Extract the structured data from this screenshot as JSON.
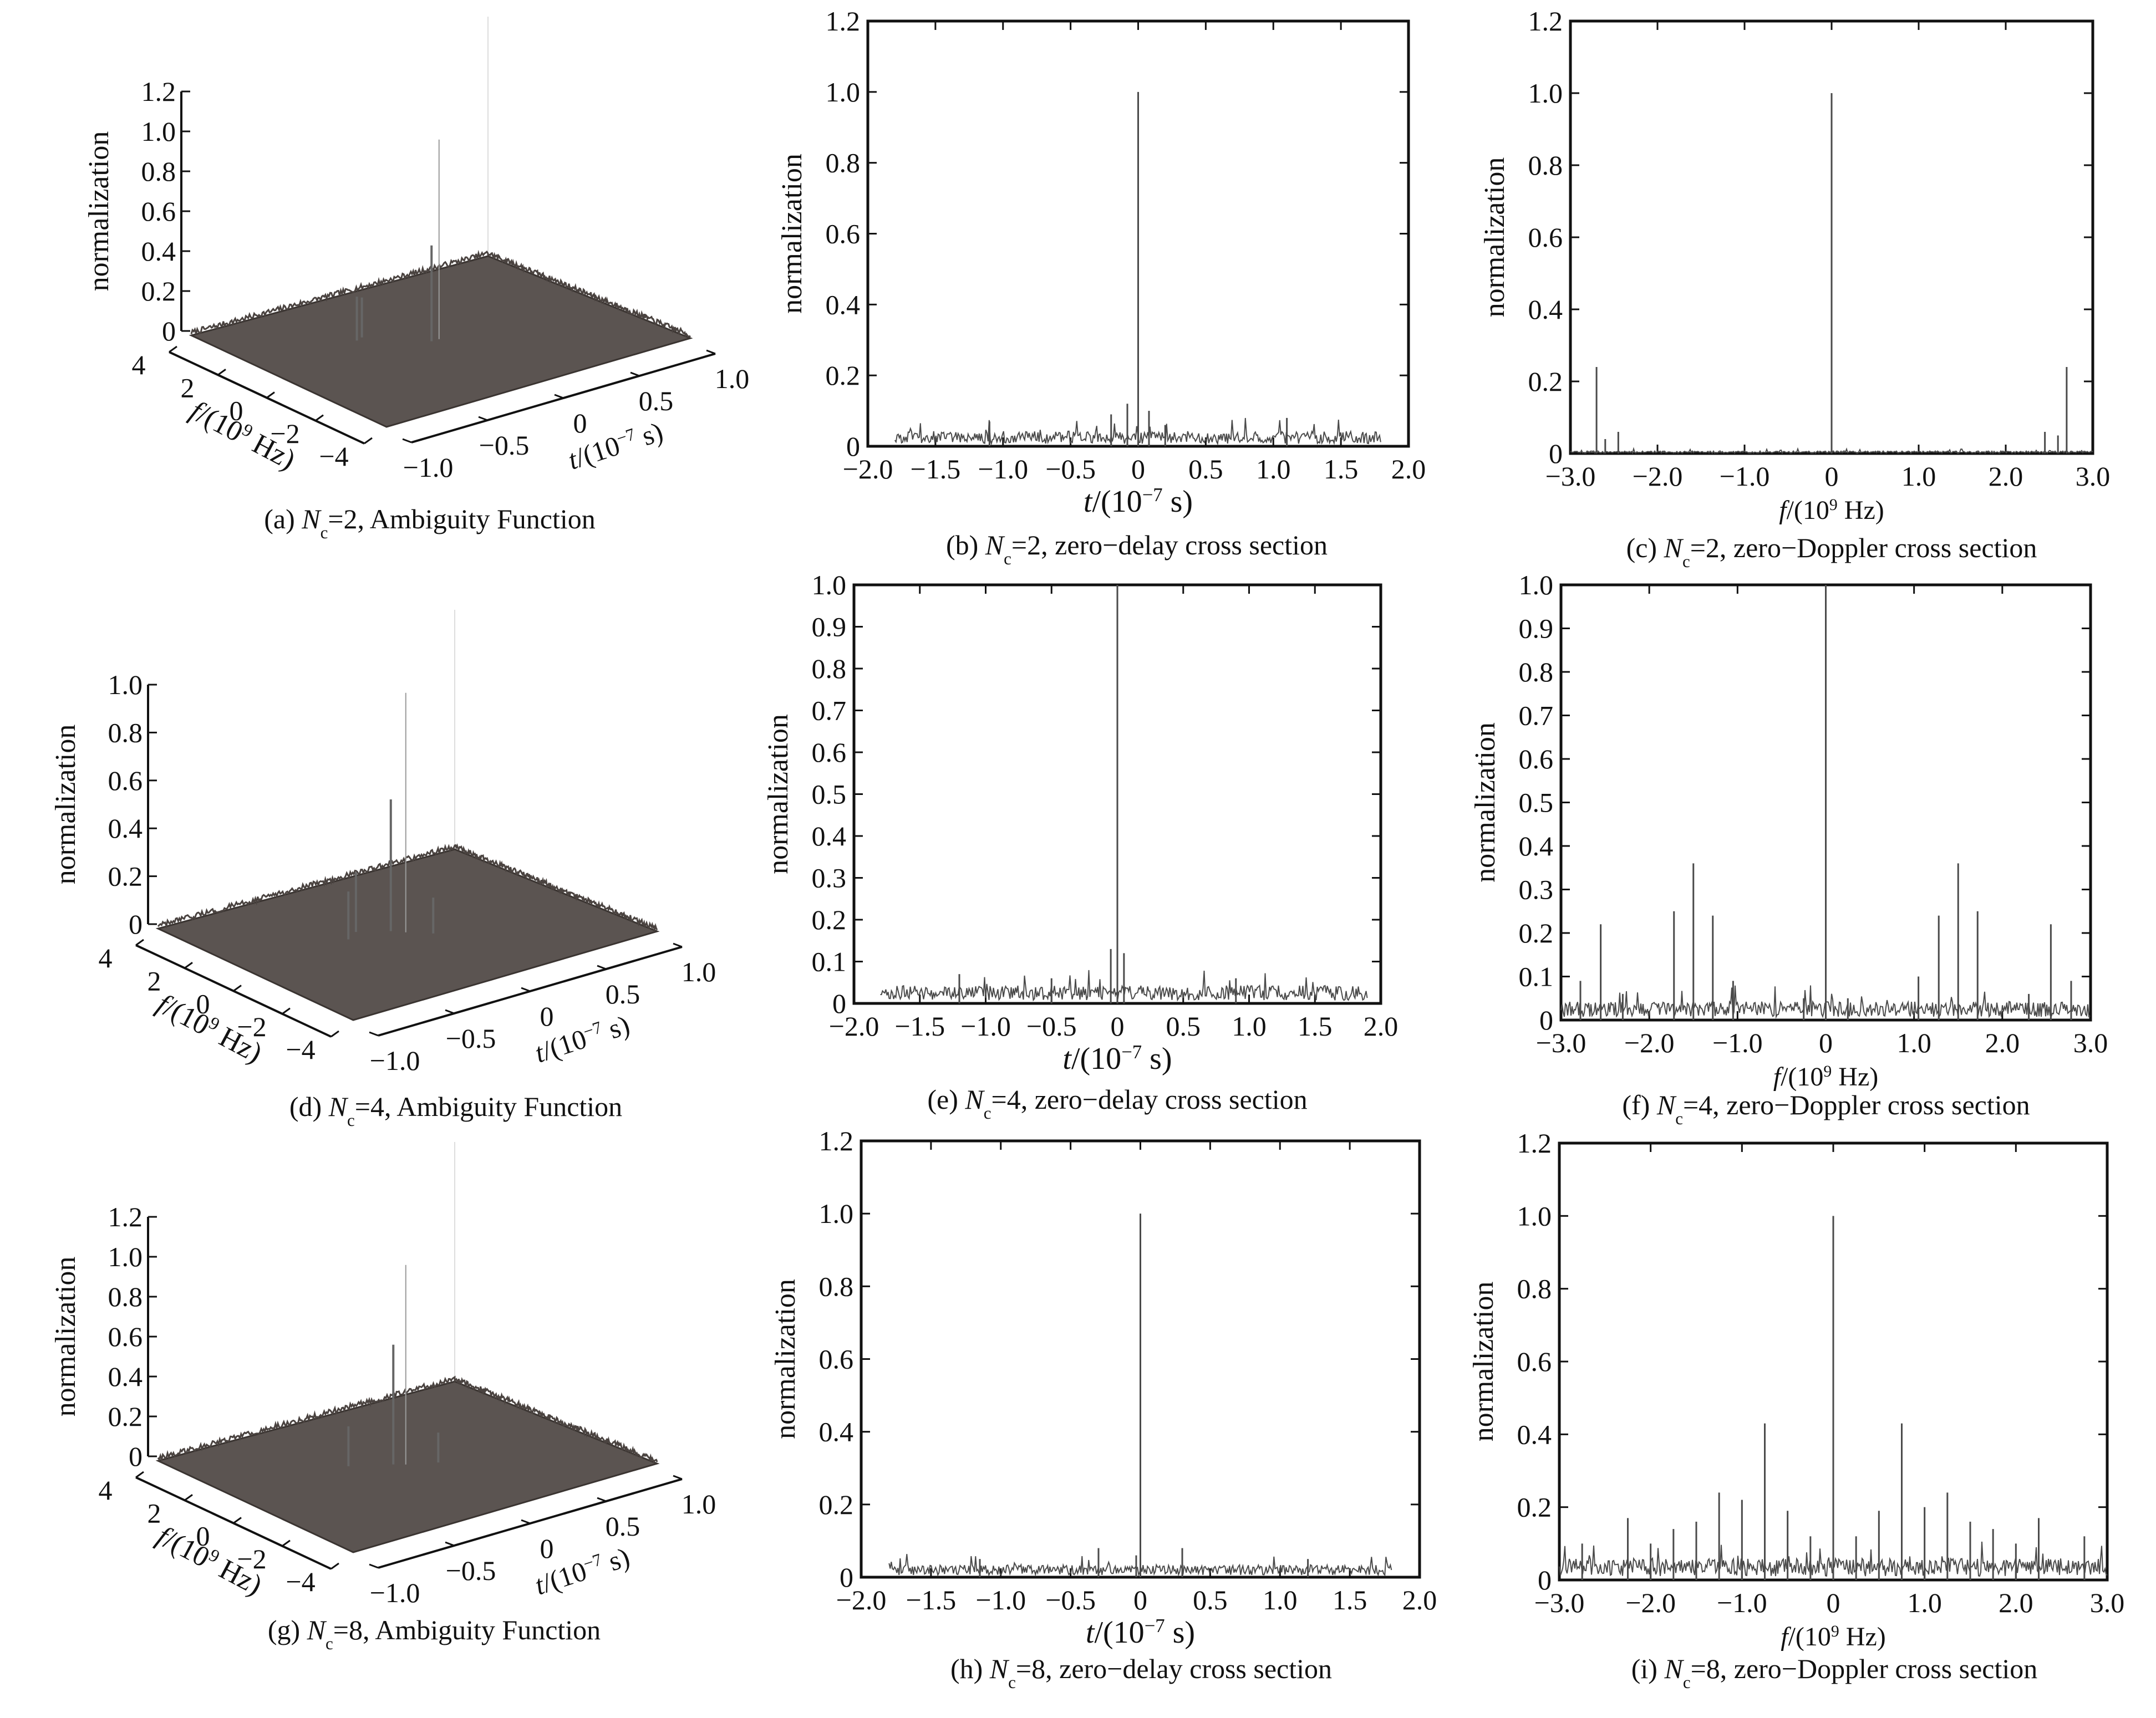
{
  "colors": {
    "axis": "#111111",
    "trace": "#4a4a4a",
    "surface": "#5b5451",
    "spike": "#9a9a9a"
  },
  "chart_data": [
    {
      "id": "a",
      "type": "surface3d",
      "caption": {
        "pre": "(a) ",
        "var": "N",
        "sub": "c",
        "post": "=2, Ambiguity Function"
      },
      "zlabel": "normalization",
      "zticks": [
        "0",
        "0.2",
        "0.4",
        "0.6",
        "0.8",
        "1.0",
        "1.2"
      ],
      "zlim": [
        0,
        1.2
      ],
      "flabel": {
        "var": "f",
        "pre": "/(10",
        "sup": "9",
        "post": " Hz)"
      },
      "fticks": [
        "4",
        "2",
        "0",
        "−2",
        "−4"
      ],
      "flim": [
        -4,
        4
      ],
      "tlabel": {
        "var": "t",
        "pre": "/(10",
        "sup": "−7",
        "post": " s)"
      },
      "tticks": [
        "−1.0",
        "−0.5",
        "0",
        "0.5",
        "1.0"
      ],
      "tlim": [
        -1.0,
        1.0
      ],
      "peaks": [
        {
          "t": 0,
          "f": 0,
          "z": 1.0
        },
        {
          "t": -0.05,
          "f": 0,
          "z": 0.48
        },
        {
          "t": -0.35,
          "f": 1.2,
          "z": 0.22
        },
        {
          "t": -0.3,
          "f": 1.3,
          "z": 0.2
        }
      ],
      "floor": 0.05
    },
    {
      "id": "b",
      "type": "line",
      "caption": {
        "pre": "(b) ",
        "var": "N",
        "sub": "c",
        "post": "=2, zero−delay cross section"
      },
      "ylabel": "normalization",
      "xlabel": {
        "var": "t",
        "pre": "/(10",
        "sup": "−7",
        "post": " s)"
      },
      "xlim": [
        -2.0,
        2.0
      ],
      "ylim": [
        0,
        1.2
      ],
      "xticks": [
        "−2.0",
        "−1.5",
        "−1.0",
        "−0.5",
        "0",
        "0.5",
        "1.0",
        "1.5",
        "2.0"
      ],
      "yticks": [
        "0",
        "0.2",
        "0.4",
        "0.6",
        "0.8",
        "1.0",
        "1.2"
      ],
      "noise": {
        "range": [
          -1.8,
          1.8
        ],
        "level": 0.025
      },
      "peaks": [
        {
          "x": 0,
          "y": 1.0
        },
        {
          "x": -0.08,
          "y": 0.12
        },
        {
          "x": 0.08,
          "y": 0.1
        },
        {
          "x": -1.1,
          "y": 0.07
        },
        {
          "x": 1.1,
          "y": 0.08
        },
        {
          "x": -0.2,
          "y": 0.09
        },
        {
          "x": 0.2,
          "y": 0.06
        }
      ]
    },
    {
      "id": "c",
      "type": "line",
      "caption": {
        "pre": "(c) ",
        "var": "N",
        "sub": "c",
        "post": "=2, zero−Doppler cross section"
      },
      "ylabel": "normalization",
      "xlabel": {
        "var": "f",
        "pre": "/(10",
        "sup": "9",
        "post": " Hz)"
      },
      "xlim": [
        -3.0,
        3.0
      ],
      "ylim": [
        0,
        1.2
      ],
      "xticks": [
        "−3.0",
        "−2.0",
        "−1.0",
        "0",
        "1.0",
        "2.0",
        "3.0"
      ],
      "yticks": [
        "0",
        "0.2",
        "0.4",
        "0.6",
        "0.8",
        "1.0",
        "1.2"
      ],
      "noise": {
        "range": [
          -3.0,
          3.0
        ],
        "level": 0.004
      },
      "peaks": [
        {
          "x": 0,
          "y": 1.0
        },
        {
          "x": -2.7,
          "y": 0.24
        },
        {
          "x": 2.7,
          "y": 0.24
        },
        {
          "x": -2.45,
          "y": 0.06
        },
        {
          "x": 2.45,
          "y": 0.06
        },
        {
          "x": -2.6,
          "y": 0.04
        },
        {
          "x": 2.6,
          "y": 0.05
        }
      ]
    },
    {
      "id": "d",
      "type": "surface3d",
      "caption": {
        "pre": "(d) ",
        "var": "N",
        "sub": "c",
        "post": "=4, Ambiguity Function"
      },
      "zlabel": "normalization",
      "zticks": [
        "0",
        "0.2",
        "0.4",
        "0.6",
        "0.8",
        "1.0"
      ],
      "zlim": [
        0,
        1.0
      ],
      "flabel": {
        "var": "f",
        "pre": "/(10",
        "sup": "9",
        "post": " Hz)"
      },
      "fticks": [
        "4",
        "2",
        "0",
        "−2",
        "−4"
      ],
      "flim": [
        -4,
        4
      ],
      "tlabel": {
        "var": "t",
        "pre": "/(10",
        "sup": "−7",
        "post": " s)"
      },
      "tticks": [
        "−1.0",
        "−0.5",
        "0",
        "0.5",
        "1.0"
      ],
      "tlim": [
        -1.0,
        1.0
      ],
      "peaks": [
        {
          "t": 0,
          "f": 0,
          "z": 1.0
        },
        {
          "t": -0.05,
          "f": 0.3,
          "z": 0.55
        },
        {
          "t": -0.2,
          "f": 0.8,
          "z": 0.25
        },
        {
          "t": -0.3,
          "f": 0.5,
          "z": 0.2
        },
        {
          "t": 0.1,
          "f": -0.5,
          "z": 0.15
        }
      ],
      "floor": 0.05
    },
    {
      "id": "e",
      "type": "line",
      "caption": {
        "pre": "(e) ",
        "var": "N",
        "sub": "c",
        "post": "=4, zero−delay cross section"
      },
      "ylabel": "normalization",
      "xlabel": {
        "var": "t",
        "pre": "/(10",
        "sup": "−7",
        "post": " s)"
      },
      "xlim": [
        -2.0,
        2.0
      ],
      "ylim": [
        0,
        1.0
      ],
      "xticks": [
        "−2.0",
        "−1.5",
        "−1.0",
        "−0.5",
        "0",
        "0.5",
        "1.0",
        "1.5",
        "2.0"
      ],
      "yticks": [
        "0",
        "0.1",
        "0.2",
        "0.3",
        "0.4",
        "0.5",
        "0.6",
        "0.7",
        "0.8",
        "0.9",
        "1.0"
      ],
      "noise": {
        "range": [
          -1.8,
          1.9
        ],
        "level": 0.025
      },
      "peaks": [
        {
          "x": 0,
          "y": 1.0
        },
        {
          "x": -0.05,
          "y": 0.13
        },
        {
          "x": 0.05,
          "y": 0.12
        },
        {
          "x": -1.2,
          "y": 0.07
        },
        {
          "x": 0.9,
          "y": 0.06
        },
        {
          "x": -0.5,
          "y": 0.06
        }
      ]
    },
    {
      "id": "f",
      "type": "line",
      "caption": {
        "pre": "(f) ",
        "var": "N",
        "sub": "c",
        "post": "=4, zero−Doppler cross section"
      },
      "ylabel": "normalization",
      "xlabel": {
        "var": "f",
        "pre": "/(10",
        "sup": "9",
        "post": " Hz)"
      },
      "xlim": [
        -3.0,
        3.0
      ],
      "ylim": [
        0,
        1.0
      ],
      "xticks": [
        "−3.0",
        "−2.0",
        "−1.0",
        "0",
        "1.0",
        "2.0",
        "3.0"
      ],
      "yticks": [
        "0",
        "0.1",
        "0.2",
        "0.3",
        "0.4",
        "0.5",
        "0.6",
        "0.7",
        "0.8",
        "0.9",
        "1.0"
      ],
      "noise": {
        "range": [
          -3.0,
          3.0
        ],
        "level": 0.025
      },
      "peaks": [
        {
          "x": 0,
          "y": 1.0
        },
        {
          "x": -1.5,
          "y": 0.36
        },
        {
          "x": 1.5,
          "y": 0.36
        },
        {
          "x": -1.72,
          "y": 0.25
        },
        {
          "x": 1.72,
          "y": 0.25
        },
        {
          "x": -1.28,
          "y": 0.24
        },
        {
          "x": 1.28,
          "y": 0.24
        },
        {
          "x": -2.55,
          "y": 0.22
        },
        {
          "x": 2.55,
          "y": 0.22
        },
        {
          "x": -2.78,
          "y": 0.09
        },
        {
          "x": 2.78,
          "y": 0.09
        },
        {
          "x": -1.05,
          "y": 0.09
        },
        {
          "x": 1.05,
          "y": 0.1
        },
        {
          "x": -0.25,
          "y": 0.05
        },
        {
          "x": 0.25,
          "y": 0.05
        },
        {
          "x": -2.3,
          "y": 0.06
        },
        {
          "x": 2.3,
          "y": 0.06
        }
      ]
    },
    {
      "id": "g",
      "type": "surface3d",
      "caption": {
        "pre": "(g) ",
        "var": "N",
        "sub": "c",
        "post": "=8, Ambiguity Function"
      },
      "zlabel": "normalization",
      "zticks": [
        "0",
        "0.2",
        "0.4",
        "0.6",
        "0.8",
        "1.0",
        "1.2"
      ],
      "zlim": [
        0,
        1.2
      ],
      "flabel": {
        "var": "f",
        "pre": "/(10",
        "sup": "9",
        "post": " Hz)"
      },
      "fticks": [
        "4",
        "2",
        "0",
        "−2",
        "−4"
      ],
      "flim": [
        -4,
        4
      ],
      "tlabel": {
        "var": "t",
        "pre": "/(10",
        "sup": "−7",
        "post": " s)"
      },
      "tticks": [
        "−1.0",
        "−0.5",
        "0",
        "0.5",
        "1.0"
      ],
      "tlim": [
        -1.0,
        1.0
      ],
      "peaks": [
        {
          "t": 0,
          "f": 0,
          "z": 1.0
        },
        {
          "t": -0.05,
          "f": 0.2,
          "z": 0.6
        },
        {
          "t": -0.25,
          "f": 0.8,
          "z": 0.2
        },
        {
          "t": 0.15,
          "f": -0.4,
          "z": 0.15
        }
      ],
      "floor": 0.05
    },
    {
      "id": "h",
      "type": "line",
      "caption": {
        "pre": "(h) ",
        "var": "N",
        "sub": "c",
        "post": "=8, zero−delay cross section"
      },
      "ylabel": "normalization",
      "xlabel": {
        "var": "t",
        "pre": "/(10",
        "sup": "−7",
        "post": " s)"
      },
      "xlim": [
        -2.0,
        2.0
      ],
      "ylim": [
        0,
        1.2
      ],
      "xticks": [
        "−2.0",
        "−1.5",
        "−1.0",
        "−0.5",
        "0",
        "0.5",
        "1.0",
        "1.5",
        "2.0"
      ],
      "yticks": [
        "0",
        "0.2",
        "0.4",
        "0.6",
        "0.8",
        "1.0",
        "1.2"
      ],
      "noise": {
        "range": [
          -1.8,
          1.8
        ],
        "level": 0.02
      },
      "peaks": [
        {
          "x": 0,
          "y": 1.0
        },
        {
          "x": -0.3,
          "y": 0.08
        },
        {
          "x": 0.3,
          "y": 0.08
        },
        {
          "x": -1.15,
          "y": 0.05
        },
        {
          "x": 1.2,
          "y": 0.05
        },
        {
          "x": -0.03,
          "y": 0.06
        }
      ]
    },
    {
      "id": "i",
      "type": "line",
      "caption": {
        "pre": "(i) ",
        "var": "N",
        "sub": "c",
        "post": "=8, zero−Doppler cross section"
      },
      "ylabel": "normalization",
      "xlabel": {
        "var": "f",
        "pre": "/(10",
        "sup": "9",
        "post": " Hz)"
      },
      "xlim": [
        -3.0,
        3.0
      ],
      "ylim": [
        0,
        1.2
      ],
      "xticks": [
        "−3.0",
        "−2.0",
        "−1.0",
        "0",
        "1.0",
        "2.0",
        "3.0"
      ],
      "yticks": [
        "0",
        "0.2",
        "0.4",
        "0.6",
        "0.8",
        "1.0",
        "1.2"
      ],
      "noise": {
        "range": [
          -3.0,
          3.0
        ],
        "level": 0.035
      },
      "peaks": [
        {
          "x": 0,
          "y": 1.0
        },
        {
          "x": -0.75,
          "y": 0.43
        },
        {
          "x": 0.75,
          "y": 0.43
        },
        {
          "x": -1.25,
          "y": 0.24
        },
        {
          "x": 1.25,
          "y": 0.24
        },
        {
          "x": -1.5,
          "y": 0.16
        },
        {
          "x": 1.5,
          "y": 0.16
        },
        {
          "x": -1.0,
          "y": 0.22
        },
        {
          "x": 1.0,
          "y": 0.2
        },
        {
          "x": -0.5,
          "y": 0.19
        },
        {
          "x": 0.5,
          "y": 0.19
        },
        {
          "x": -2.25,
          "y": 0.17
        },
        {
          "x": 2.25,
          "y": 0.17
        },
        {
          "x": -1.75,
          "y": 0.14
        },
        {
          "x": 1.75,
          "y": 0.14
        },
        {
          "x": -2.0,
          "y": 0.1
        },
        {
          "x": 2.0,
          "y": 0.1
        },
        {
          "x": -2.75,
          "y": 0.1
        },
        {
          "x": 2.75,
          "y": 0.12
        },
        {
          "x": -0.25,
          "y": 0.12
        },
        {
          "x": 0.25,
          "y": 0.12
        }
      ]
    }
  ]
}
